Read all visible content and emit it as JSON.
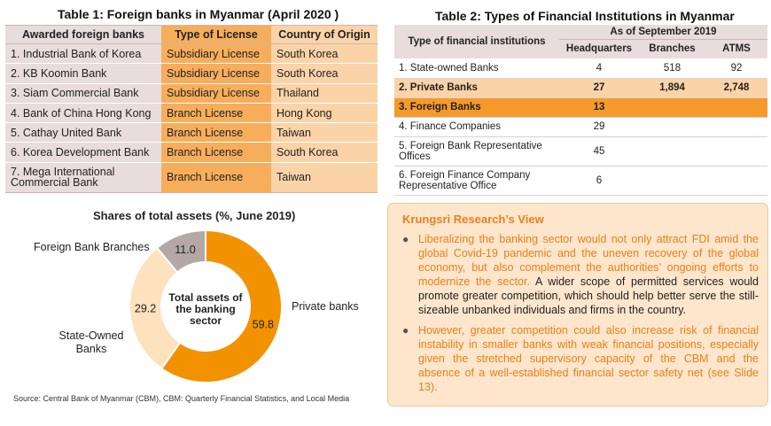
{
  "table1": {
    "title": "Table 1: Foreign banks in Myanmar (April 2020 )",
    "headers": [
      "Awarded foreign banks",
      "Type of License",
      "Country of Origin"
    ],
    "rows": [
      [
        "1. Industrial Bank of Korea",
        "Subsidiary License",
        "South Korea"
      ],
      [
        "2. KB Koomin Bank",
        "Subsidiary License",
        "South Korea"
      ],
      [
        "3. Siam Commercial Bank",
        "Subsidiary License",
        "Thailand"
      ],
      [
        "4. Bank of China Hong Kong",
        "Branch License",
        "Hong Kong"
      ],
      [
        "5. Cathay United Bank",
        "Branch License",
        "Taiwan"
      ],
      [
        "6. Korea Development Bank",
        "Branch License",
        "South Korea"
      ],
      [
        "7. Mega International Commercial Bank",
        "Branch License",
        "Taiwan"
      ]
    ]
  },
  "table2": {
    "title": "Table 2: Types of Financial Institutions in Myanmar",
    "header_type": "Type of financial institutions",
    "header_group": "As of September 2019",
    "subheaders": [
      "Headquarters",
      "Branches",
      "ATMS"
    ],
    "rows": [
      [
        "1. State-owned Banks",
        "4",
        "518",
        "92"
      ],
      [
        "2. Private Banks",
        "27",
        "1,894",
        "2,748"
      ],
      [
        "3. Foreign Banks",
        "13",
        "",
        ""
      ],
      [
        "4. Finance Companies",
        "29",
        "",
        ""
      ],
      [
        "5. Foreign Bank Representative Offices",
        "45",
        "",
        ""
      ],
      [
        "6. Foreign Finance Company Representative Office",
        "6",
        "",
        ""
      ]
    ]
  },
  "chart_data": {
    "type": "pie",
    "title": "Shares of total assets (%, June 2019)",
    "center_label": "Total assets of the banking sector",
    "slices": [
      {
        "name": "Private banks",
        "value": 59.8,
        "color": "#f39200"
      },
      {
        "name": "State-Owned Banks",
        "value": 29.2,
        "color": "#fde2bd"
      },
      {
        "name": "Foreign Bank Branches",
        "value": 11.0,
        "color": "#b5a7a7"
      }
    ],
    "value_labels": [
      "59.8",
      "29.2",
      "11.0"
    ]
  },
  "source": "Source: Central Bank of Myanmar (CBM), CBM: Quarterly Financial Statistics, and Local Media",
  "view": {
    "title": "Krungsri Research’s View",
    "bullet1_highlight": "Liberalizing the banking sector would not only attract FDI amid the global Covid-19 pandemic and the uneven recovery of the global economy, but also complement the authorities’ ongoing efforts to modernize the sector.",
    "bullet1_rest": " A wider scope of permitted services would promote greater competition, which should help better serve the still-sizeable unbanked individuals and firms in the country.",
    "bullet2": "However, greater competition could also increase risk of financial instability in smaller banks with weak financial positions, especially given the stretched supervisory capacity of the CBM and the absence of a well-established financial sector safety net (see Slide 13)."
  }
}
